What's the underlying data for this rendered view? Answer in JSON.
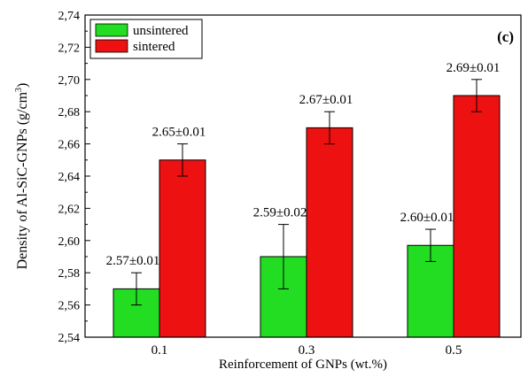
{
  "chart_data": {
    "type": "bar",
    "panel_label": "(c)",
    "xlabel": "Reinforcement of GNPs (wt.%)",
    "ylabel_main": "Density of Al-SiC-GNPs (g/cm",
    "ylabel_sup": "3",
    "ylabel_close": ")",
    "categories": [
      "0.1",
      "0.3",
      "0.5"
    ],
    "ylim": [
      2.54,
      2.74
    ],
    "yticks": [
      "2,54",
      "2,56",
      "2,58",
      "2,60",
      "2,62",
      "2,64",
      "2,66",
      "2,68",
      "2,70",
      "2,72",
      "2,74"
    ],
    "ytick_values": [
      2.54,
      2.56,
      2.58,
      2.6,
      2.62,
      2.64,
      2.66,
      2.68,
      2.7,
      2.72,
      2.74
    ],
    "legend_position": "top-left",
    "grid": false,
    "series": [
      {
        "name": "unsintered",
        "color": "#22dd22",
        "values": [
          2.57,
          2.59,
          2.597
        ],
        "errors": [
          0.01,
          0.02,
          0.01
        ],
        "labels": [
          "2.57±0.01",
          "2.59±0.02",
          "2.60±0.01"
        ]
      },
      {
        "name": "sintered",
        "color": "#ee1111",
        "values": [
          2.65,
          2.67,
          2.69
        ],
        "errors": [
          0.01,
          0.01,
          0.01
        ],
        "labels": [
          "2.65±0.01",
          "2.67±0.01",
          "2.69±0.01"
        ]
      }
    ]
  }
}
